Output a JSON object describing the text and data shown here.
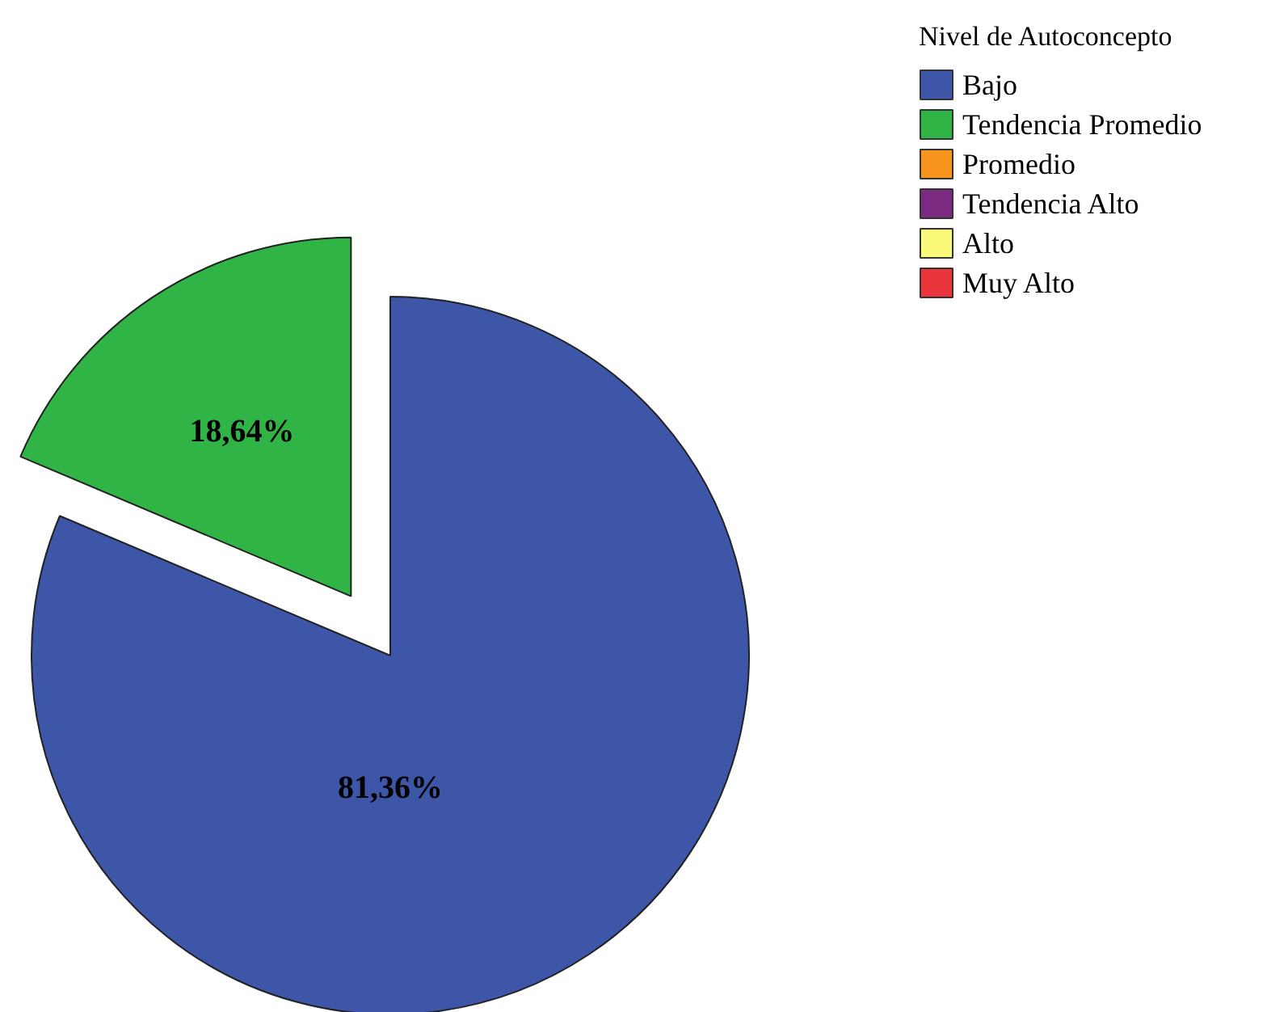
{
  "chart_data": {
    "type": "pie",
    "legend_title": "Nivel de Autoconcepto",
    "categories": [
      "Bajo",
      "Tendencia Promedio",
      "Promedio",
      "Tendencia Alto",
      "Alto",
      "Muy Alto"
    ],
    "values": [
      81.36,
      18.64,
      0,
      0,
      0,
      0
    ],
    "colors": [
      "#3d56a8",
      "#31b446",
      "#f7941d",
      "#7b2a82",
      "#fbf97a",
      "#e8343a"
    ],
    "value_labels": [
      "81,36%",
      "18,64%",
      null,
      null,
      null,
      null
    ],
    "legend": "right"
  }
}
